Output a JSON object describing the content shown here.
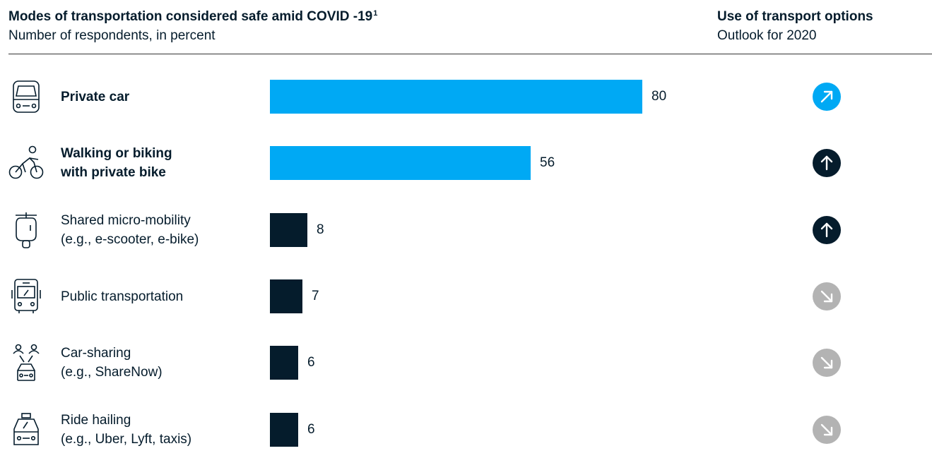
{
  "header": {
    "title": "Modes of transportation considered safe amid COVID -19",
    "title_sup": "1",
    "subtitle": "Number of respondents, in percent",
    "right_title": "Use of transport options",
    "right_subtitle": "Outlook for 2020"
  },
  "colors": {
    "highlight": "#00a9f4",
    "dark": "#051c2c",
    "neutral": "#b3b3b3",
    "text": "#051c2c"
  },
  "chart_data": {
    "type": "bar",
    "orientation": "horizontal",
    "title": "Modes of transportation considered safe amid COVID -19",
    "subtitle": "Number of respondents, in percent",
    "xlim": [
      0,
      80
    ],
    "grid": false,
    "categories": [
      "Private car",
      "Walking or biking with private bike",
      "Shared micro-mobility (e.g., e-scooter, e-bike)",
      "Public transportation",
      "Car-sharing (e.g., ShareNow)",
      "Ride hailing (e.g., Uber, Lyft, taxis)"
    ],
    "values": [
      80,
      56,
      8,
      7,
      6,
      6
    ],
    "outlook_title": "Use of transport options",
    "outlook_subtitle": "Outlook for 2020",
    "outlook": [
      "up-right",
      "up",
      "up",
      "down-right",
      "down-right",
      "down-right"
    ]
  },
  "rows": [
    {
      "lines": [
        "Private car"
      ],
      "bold": true,
      "icon": "car-icon",
      "bar_color": "highlight",
      "trend_color": "highlight",
      "trend": "up-right"
    },
    {
      "lines": [
        "Walking or biking",
        "with private bike"
      ],
      "bold": true,
      "icon": "cyclist-icon",
      "bar_color": "highlight",
      "trend_color": "dark",
      "trend": "up"
    },
    {
      "lines": [
        "Shared micro-mobility",
        "(e.g., e-scooter, e-bike)"
      ],
      "bold": false,
      "icon": "scooter-icon",
      "bar_color": "dark",
      "trend_color": "dark",
      "trend": "up"
    },
    {
      "lines": [
        "Public transportation"
      ],
      "bold": false,
      "icon": "bus-icon",
      "bar_color": "dark",
      "trend_color": "neutral",
      "trend": "down-right"
    },
    {
      "lines": [
        "Car-sharing",
        "(e.g., ShareNow)"
      ],
      "bold": false,
      "icon": "car-sharing-icon",
      "bar_color": "dark",
      "trend_color": "neutral",
      "trend": "down-right"
    },
    {
      "lines": [
        "Ride hailing",
        "(e.g., Uber, Lyft, taxis)"
      ],
      "bold": false,
      "icon": "taxi-icon",
      "bar_color": "dark",
      "trend_color": "neutral",
      "trend": "down-right"
    }
  ]
}
